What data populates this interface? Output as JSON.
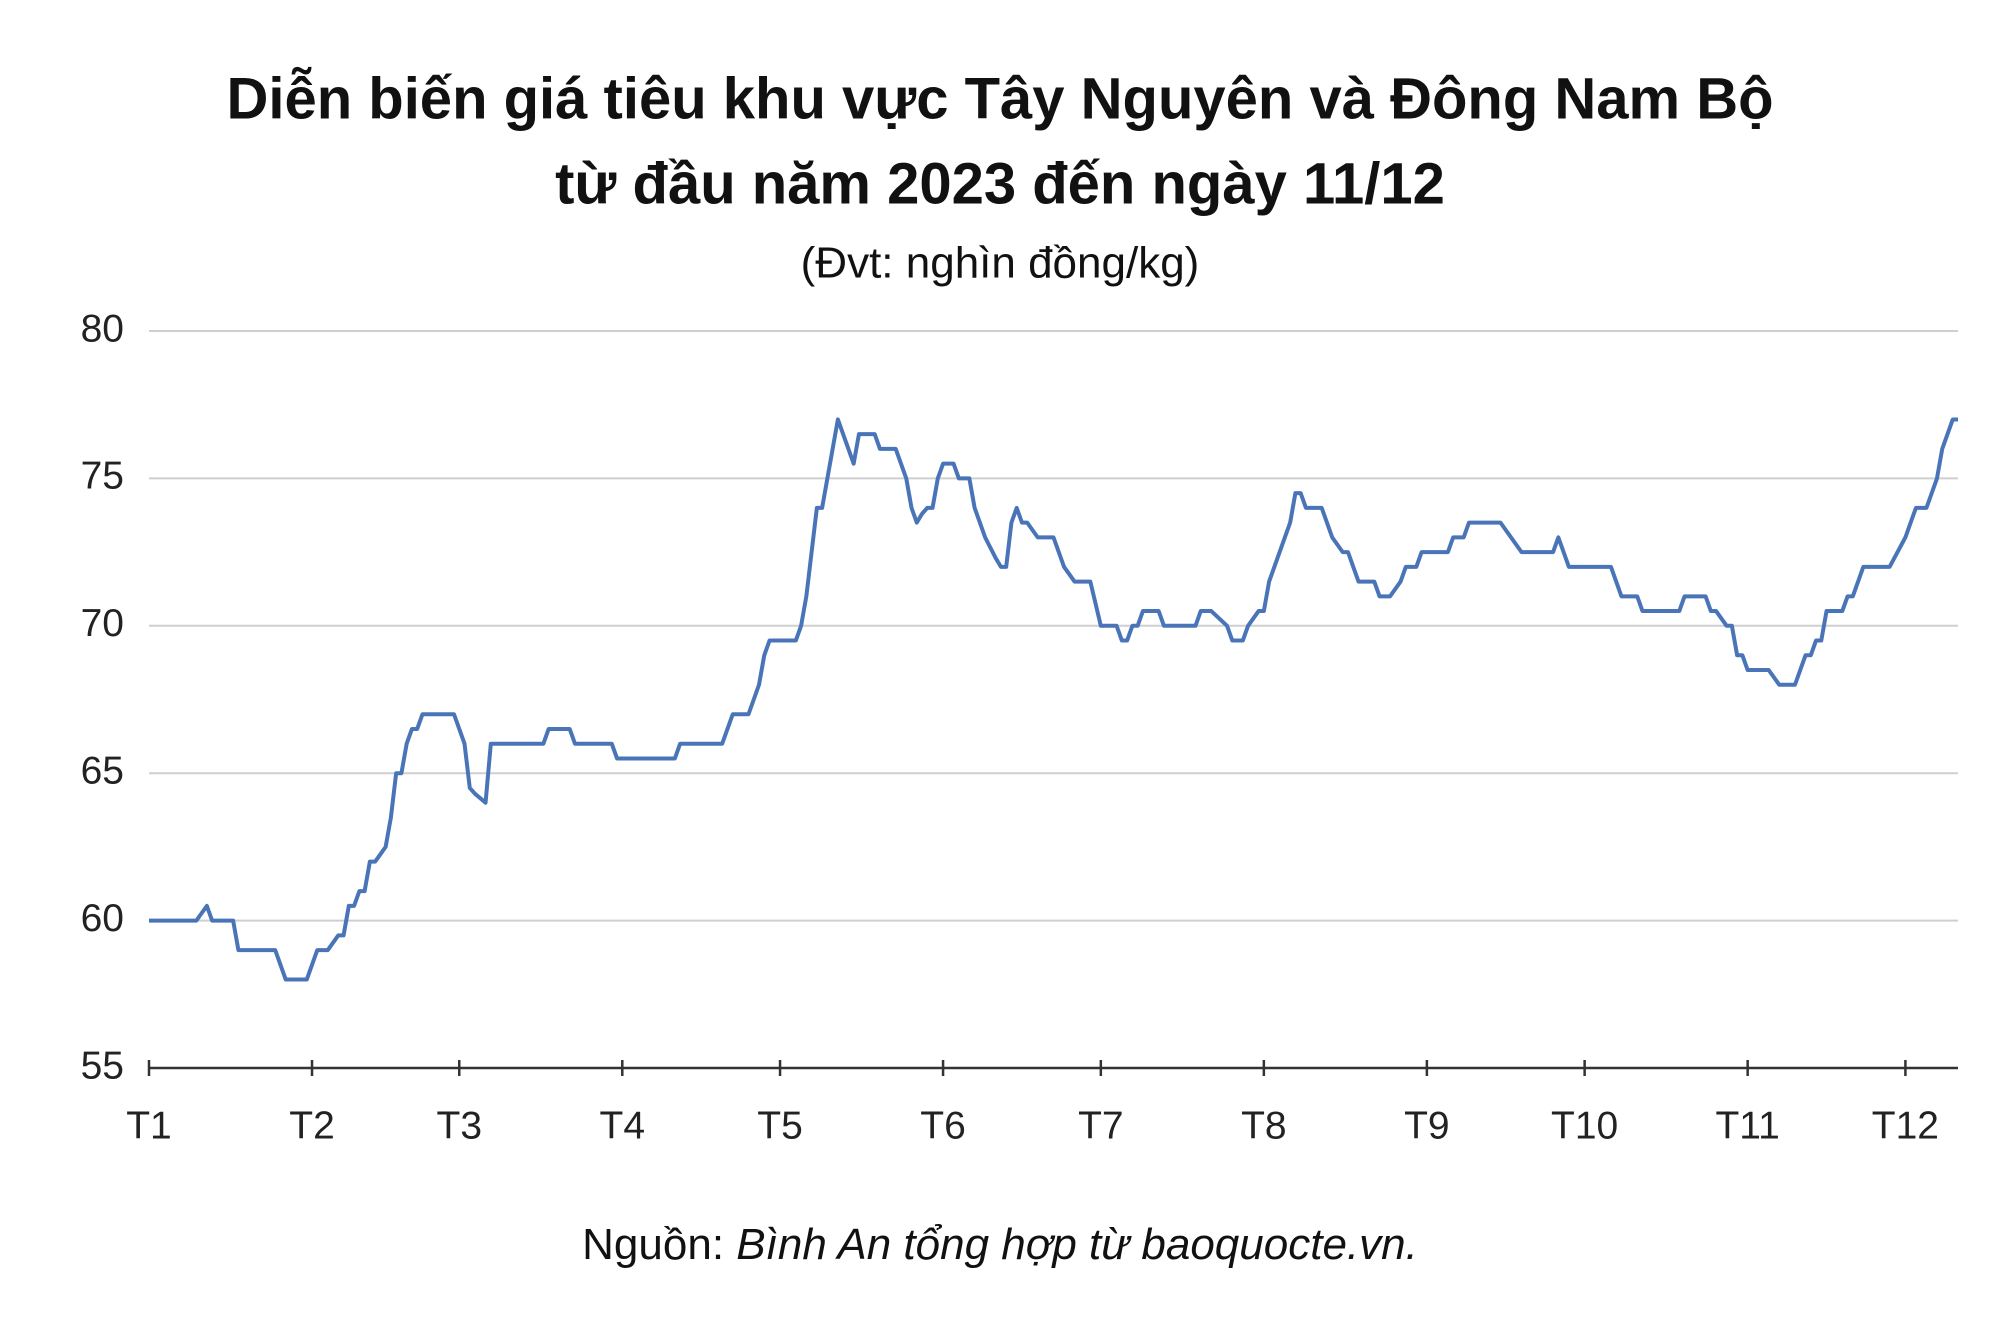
{
  "chart_data": {
    "type": "line",
    "title": [
      "Diễn biến giá tiêu khu vực Tây Nguyên và Đông Nam Bộ",
      "từ đầu năm 2023 đến ngày 11/12"
    ],
    "subtitle": "(Đvt: nghìn đồng/kg)",
    "source": {
      "label": "Nguồn:",
      "text": "Bình An tổng hợp từ baoquocte.vn."
    },
    "color": "#4a74b8",
    "grid": true,
    "xlim": [
      0,
      344
    ],
    "xticks": [
      {
        "value": 0,
        "label": "T1"
      },
      {
        "value": 31,
        "label": "T2"
      },
      {
        "value": 59,
        "label": "T3"
      },
      {
        "value": 90,
        "label": "T4"
      },
      {
        "value": 120,
        "label": "T5"
      },
      {
        "value": 151,
        "label": "T6"
      },
      {
        "value": 181,
        "label": "T7"
      },
      {
        "value": 212,
        "label": "T8"
      },
      {
        "value": 243,
        "label": "T9"
      },
      {
        "value": 273,
        "label": "T10"
      },
      {
        "value": 304,
        "label": "T11"
      },
      {
        "value": 334,
        "label": "T12"
      }
    ],
    "ylim": [
      55,
      80
    ],
    "yticks": [
      55,
      60,
      65,
      70,
      75,
      80
    ],
    "x": [
      0,
      9,
      11,
      12,
      16,
      17,
      24,
      26,
      30,
      32,
      34,
      36,
      37,
      38,
      39,
      40,
      41,
      42,
      43,
      45,
      46,
      47,
      48,
      49,
      50,
      51,
      52,
      58,
      60,
      61,
      62,
      64,
      65,
      75,
      76,
      80,
      81,
      88,
      89,
      100,
      101,
      109,
      111,
      114,
      116,
      117,
      118,
      123,
      124,
      125,
      127,
      128,
      131,
      134,
      135,
      138,
      139,
      142,
      144,
      145,
      146,
      147,
      148,
      149,
      150,
      151,
      153,
      154,
      156,
      157,
      159,
      161,
      162,
      163,
      164,
      165,
      166,
      167,
      169,
      172,
      174,
      176,
      179,
      181,
      184,
      185,
      186,
      187,
      188,
      189,
      192,
      193,
      199,
      200,
      202,
      205,
      206,
      208,
      209,
      211,
      212,
      213,
      215,
      217,
      218,
      219,
      220,
      223,
      225,
      227,
      228,
      230,
      233,
      234,
      236,
      238,
      239,
      241,
      242,
      247,
      248,
      250,
      251,
      257,
      259,
      261,
      267,
      268,
      270,
      278,
      280,
      283,
      284,
      291,
      292,
      296,
      297,
      298,
      300,
      301,
      302,
      303,
      304,
      308,
      310,
      313,
      315,
      316,
      317,
      318,
      319,
      322,
      323,
      324,
      326,
      331,
      334,
      336,
      338,
      340,
      341,
      343,
      344
    ],
    "values": [
      60,
      60,
      60.5,
      60,
      60,
      59,
      59,
      58,
      58,
      59,
      59,
      59.5,
      59.5,
      60.5,
      60.5,
      61,
      61,
      62,
      62,
      62.5,
      63.5,
      65,
      65,
      66,
      66.5,
      66.5,
      67,
      67,
      66,
      64.5,
      64.3,
      64,
      66,
      66,
      66.5,
      66.5,
      66,
      66,
      65.5,
      65.5,
      66,
      66,
      67,
      67,
      68,
      69,
      69.5,
      69.5,
      70,
      71,
      74,
      74,
      77,
      75.5,
      76.5,
      76.5,
      76,
      76,
      75,
      74,
      73.5,
      73.8,
      74,
      74,
      75,
      75.5,
      75.5,
      75,
      75,
      74,
      73,
      72.3,
      72,
      72,
      73.5,
      74,
      73.5,
      73.5,
      73,
      73,
      72,
      71.5,
      71.5,
      70,
      70,
      69.5,
      69.5,
      70,
      70,
      70.5,
      70.5,
      70,
      70,
      70.5,
      70.5,
      70,
      69.5,
      69.5,
      70,
      70.5,
      70.5,
      71.5,
      72.5,
      73.5,
      74.5,
      74.5,
      74,
      74,
      73,
      72.5,
      72.5,
      71.5,
      71.5,
      71,
      71,
      71.5,
      72,
      72,
      72.5,
      72.5,
      73,
      73,
      73.5,
      73.5,
      73,
      72.5,
      72.5,
      73,
      72,
      72,
      71,
      71,
      70.5,
      70.5,
      71,
      71,
      70.5,
      70.5,
      70,
      70,
      69,
      69,
      68.5,
      68.5,
      68,
      68,
      69,
      69,
      69.5,
      69.5,
      70.5,
      70.5,
      71,
      71,
      72,
      72,
      73,
      74,
      74,
      75,
      76,
      77,
      77
    ]
  }
}
